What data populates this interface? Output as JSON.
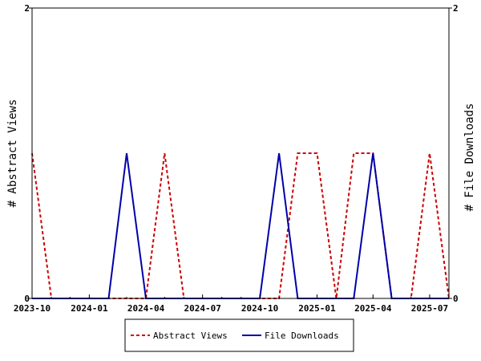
{
  "chart_data": {
    "type": "line",
    "x": [
      "2023-10-01",
      "2023-11-01",
      "2023-12-01",
      "2024-01-01",
      "2024-02-01",
      "2024-03-01",
      "2024-04-01",
      "2024-05-01",
      "2024-06-01",
      "2024-07-01",
      "2024-08-01",
      "2024-09-01",
      "2024-10-01",
      "2024-11-01",
      "2024-12-01",
      "2025-01-01",
      "2025-02-01",
      "2025-03-01",
      "2025-04-01",
      "2025-05-01",
      "2025-06-01",
      "2025-07-01",
      "2025-08-01"
    ],
    "x_ticks": [
      {
        "label": "2023-10",
        "date": "2023-10-01"
      },
      {
        "label": "2024-01",
        "date": "2024-01-01"
      },
      {
        "label": "2024-04",
        "date": "2024-04-01"
      },
      {
        "label": "2024-07",
        "date": "2024-07-01"
      },
      {
        "label": "2024-10",
        "date": "2024-10-01"
      },
      {
        "label": "2025-01",
        "date": "2025-01-01"
      },
      {
        "label": "2025-04",
        "date": "2025-04-01"
      },
      {
        "label": "2025-07",
        "date": "2025-07-01"
      }
    ],
    "xlim": [
      "2023-10-01",
      "2025-08-01"
    ],
    "series": [
      {
        "name": "Abstract Views",
        "axis": "left",
        "color": "#cc0000",
        "dash": "dashed",
        "values": [
          1,
          0,
          0,
          0,
          0,
          0,
          0,
          1,
          0,
          0,
          0,
          0,
          0,
          0,
          1,
          1,
          0,
          1,
          1,
          0,
          0,
          1,
          0
        ]
      },
      {
        "name": "File Downloads",
        "axis": "right",
        "color": "#0000aa",
        "dash": "solid",
        "values": [
          0,
          0,
          0,
          0,
          0,
          1,
          0,
          0,
          0,
          0,
          0,
          0,
          0,
          1,
          0,
          0,
          0,
          0,
          1,
          0,
          0,
          0,
          0
        ]
      }
    ],
    "ylabel_left": "# Abstract Views",
    "ylabel_right": "# File Downloads",
    "ylim_left": [
      0,
      2
    ],
    "ylim_right": [
      0,
      2
    ],
    "y_ticks_left": [
      "0",
      "2"
    ],
    "y_ticks_right": [
      "0",
      "2"
    ],
    "grid": false,
    "legend_position": "bottom-center"
  }
}
